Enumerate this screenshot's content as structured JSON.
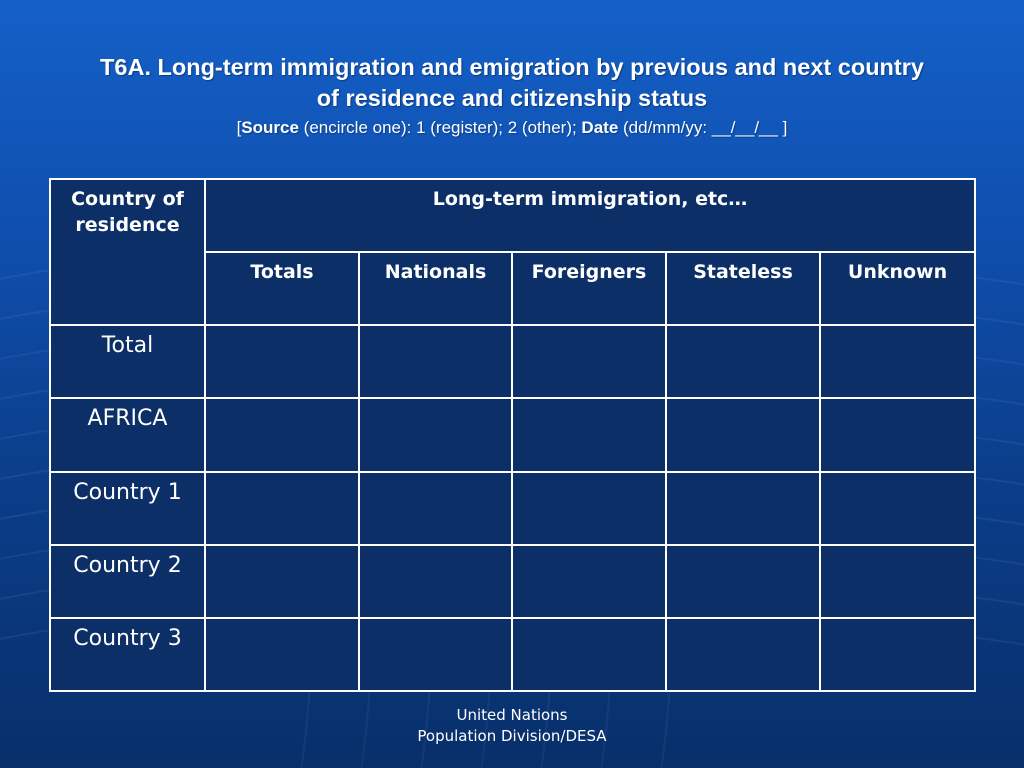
{
  "title": {
    "line1": "T6A. Long-term immigration and emigration by previous and next country",
    "line2": "of residence and citizenship status"
  },
  "subtitle": {
    "open": "[",
    "source_label": "Source",
    "source_text": " (encircle one): 1 (register); 2 (other); ",
    "date_label": "Date",
    "date_text": " (dd/mm/yy: __/__/__ ]"
  },
  "table": {
    "corner_header": "Country of residence",
    "group_header": "Long-term immigration, etc…",
    "columns": [
      "Totals",
      "Nationals",
      "Foreigners",
      "Stateless",
      "Unknown"
    ],
    "rows": [
      "Total",
      "AFRICA",
      "Country 1",
      "Country 2",
      "Country 3"
    ]
  },
  "footer": {
    "line1": "United Nations",
    "line2": "Population Division/DESA"
  },
  "colors": {
    "background_top": "#1460c8",
    "background_bottom": "#082f6a",
    "table_fill": "#0b2f66",
    "text": "#ffffff"
  }
}
